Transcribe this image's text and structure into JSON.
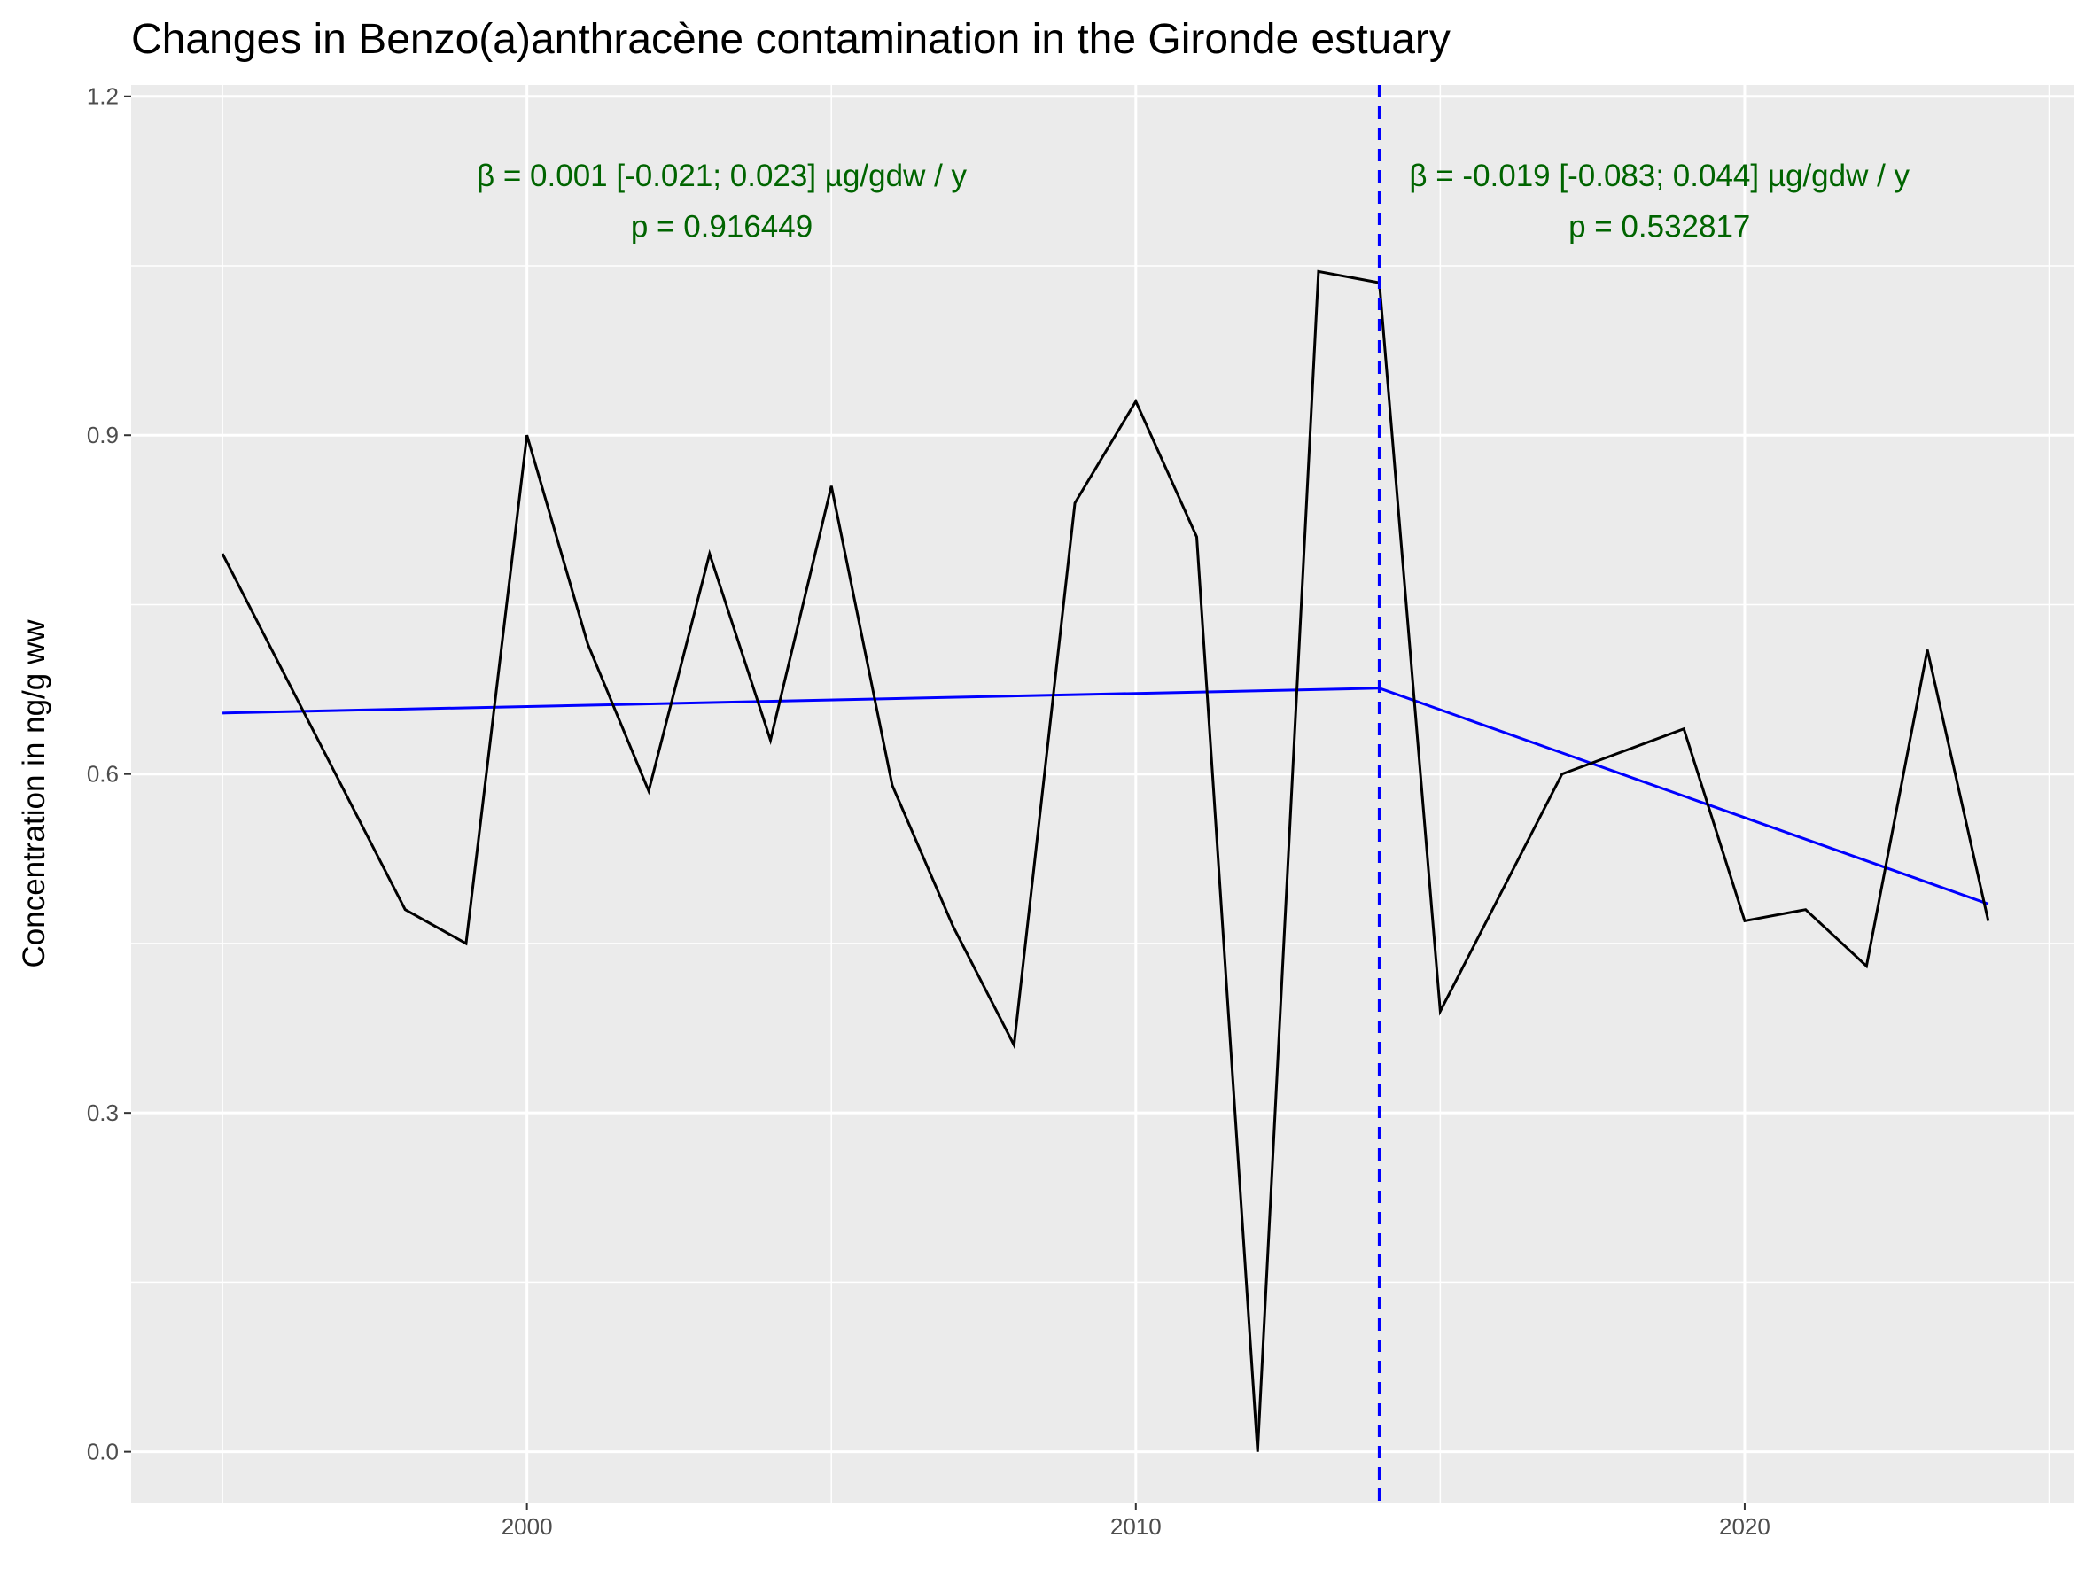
{
  "chart_data": {
    "type": "line",
    "title": "Changes in Benzo(a)anthracène contamination in the Gironde estuary",
    "xlabel": "",
    "ylabel": "Concentration in ng/g ww",
    "xlim": [
      1993.5,
      2025.4
    ],
    "ylim": [
      -0.045,
      1.21
    ],
    "x_ticks": [
      2000,
      2010,
      2020
    ],
    "y_ticks": [
      0.0,
      0.3,
      0.6,
      0.9,
      1.2
    ],
    "y_tick_labels": [
      "0.0",
      "0.3",
      "0.6",
      "0.9",
      "1.2"
    ],
    "grid": true,
    "legend": "none",
    "series": [
      {
        "color": "#000000",
        "x": [
          1995,
          1998,
          1999,
          2000,
          2001,
          2002,
          2003,
          2004,
          2005,
          2006,
          2007,
          2008,
          2009,
          2010,
          2011,
          2012,
          2013,
          2014,
          2015,
          2017,
          2019,
          2020,
          2021,
          2022,
          2023,
          2024
        ],
        "y": [
          0.795,
          0.48,
          0.45,
          0.9,
          0.715,
          0.585,
          0.795,
          0.63,
          0.855,
          0.59,
          0.465,
          0.36,
          0.84,
          0.93,
          0.81,
          0.0,
          1.045,
          1.035,
          0.39,
          0.6,
          0.64,
          0.47,
          0.48,
          0.43,
          0.71,
          0.47
        ]
      }
    ],
    "trend_lines": [
      {
        "color": "#0000ff",
        "x": [
          1995,
          2014
        ],
        "y": [
          0.654,
          0.676
        ]
      },
      {
        "color": "#0000ff",
        "x": [
          2014,
          2024
        ],
        "y": [
          0.676,
          0.485
        ]
      }
    ],
    "breakpoint": {
      "x": 2014,
      "color": "#0000ff",
      "style": "dashed"
    },
    "annotations": [
      {
        "x": 2003.2,
        "y": 1.13,
        "text": "β = 0.001 [-0.021; 0.023] µg/gdw / y"
      },
      {
        "x": 2003.2,
        "y": 1.085,
        "text": "p = 0.916449"
      },
      {
        "x": 2018.6,
        "y": 1.13,
        "text": "β = -0.019 [-0.083; 0.044] µg/gdw / y"
      },
      {
        "x": 2018.6,
        "y": 1.085,
        "text": "p = 0.532817"
      }
    ]
  }
}
